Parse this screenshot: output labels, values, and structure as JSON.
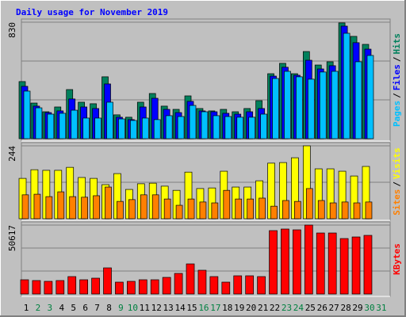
{
  "chart_data": [
    {
      "type": "bar",
      "title": "Daily usage for November 2019",
      "label_separator": "/",
      "ylim": [
        0,
        830
      ],
      "yticks": [
        830
      ],
      "grid_values": [
        276.67,
        553.33
      ],
      "series": [
        {
          "name": "Hits",
          "color": "#00805c",
          "values": [
            407,
            254,
            192,
            226,
            350,
            260,
            249,
            441,
            170,
            153,
            260,
            322,
            232,
            209,
            305,
            215,
            198,
            209,
            192,
            215,
            271,
            463,
            537,
            463,
            621,
            525,
            548,
            825,
            729,
            672,
            0
          ]
        },
        {
          "name": "Files",
          "color": "#0000ff",
          "values": [
            373,
            232,
            186,
            198,
            283,
            226,
            215,
            390,
            153,
            136,
            226,
            288,
            209,
            186,
            266,
            198,
            192,
            181,
            175,
            192,
            215,
            446,
            509,
            452,
            559,
            497,
            520,
            802,
            684,
            638,
            0
          ]
        },
        {
          "name": "Pages",
          "color": "#00c0ff",
          "values": [
            339,
            220,
            175,
            181,
            203,
            147,
            147,
            260,
            141,
            130,
            147,
            136,
            164,
            158,
            237,
            192,
            164,
            158,
            153,
            153,
            175,
            429,
            480,
            441,
            424,
            475,
            480,
            751,
            548,
            593,
            0
          ]
        }
      ]
    },
    {
      "type": "bar",
      "label_separator": "/",
      "ylim": [
        0,
        244
      ],
      "yticks": [
        244
      ],
      "grid_values": [
        122
      ],
      "series": [
        {
          "name": "Visits",
          "color": "#ffff00",
          "values": [
            135,
            164,
            162,
            162,
            172,
            138,
            135,
            114,
            151,
            98,
            117,
            119,
            109,
            95,
            156,
            101,
            103,
            159,
            106,
            106,
            127,
            186,
            188,
            204,
            244,
            167,
            167,
            159,
            143,
            175,
            0
          ]
        },
        {
          "name": "Sites",
          "color": "#ff8000",
          "values": [
            80,
            82,
            74,
            90,
            74,
            72,
            77,
            106,
            58,
            64,
            80,
            80,
            66,
            45,
            66,
            56,
            53,
            95,
            66,
            66,
            69,
            42,
            61,
            58,
            101,
            61,
            53,
            56,
            53,
            56,
            0
          ]
        }
      ]
    },
    {
      "type": "bar",
      "ylim": [
        0,
        50617
      ],
      "yticks": [
        50617
      ],
      "grid_values": [
        16872,
        33745
      ],
      "categories": [
        "1",
        "2",
        "3",
        "4",
        "5",
        "6",
        "7",
        "8",
        "9",
        "10",
        "11",
        "12",
        "13",
        "14",
        "15",
        "16",
        "17",
        "18",
        "19",
        "20",
        "21",
        "22",
        "23",
        "24",
        "25",
        "26",
        "27",
        "28",
        "29",
        "30",
        "31"
      ],
      "category_colors": [
        "#000000",
        "#008040",
        "#008040",
        "#000000",
        "#000000",
        "#000000",
        "#000000",
        "#000000",
        "#008040",
        "#008040",
        "#000000",
        "#000000",
        "#000000",
        "#000000",
        "#000000",
        "#008040",
        "#008040",
        "#000000",
        "#000000",
        "#000000",
        "#000000",
        "#000000",
        "#008040",
        "#008040",
        "#000000",
        "#000000",
        "#000000",
        "#000000",
        "#000000",
        "#008040",
        "#008040"
      ],
      "series": [
        {
          "name": "KBytes",
          "color": "#ff0000",
          "values": [
            10473,
            9891,
            9309,
            9891,
            12800,
            10473,
            11636,
            19200,
            8727,
            9309,
            10473,
            10473,
            12218,
            15127,
            22109,
            17454,
            12800,
            8727,
            13382,
            13382,
            12800,
            46545,
            47709,
            47127,
            50617,
            44800,
            44800,
            40727,
            41891,
            43054,
            0
          ]
        }
      ]
    }
  ]
}
